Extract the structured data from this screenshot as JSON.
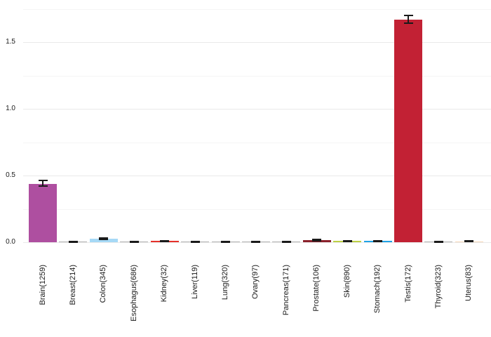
{
  "chart_data": {
    "type": "bar",
    "title": "",
    "xlabel": "",
    "ylabel": "",
    "legend": "none",
    "grid": true,
    "ylim": [
      0,
      1.8
    ],
    "yticks": [
      0.0,
      0.5,
      1.0,
      1.5
    ],
    "ytick_labels": [
      "0.0",
      "0.5",
      "1.0",
      "1.5"
    ],
    "minor_ticks": [
      0.25,
      0.75,
      1.25,
      1.75
    ],
    "categories": [
      "Brain(1259)",
      "Breast(214)",
      "Colon(345)",
      "Esophagus(686)",
      "Kidney(32)",
      "Liver(119)",
      "Lung(320)",
      "Ovary(97)",
      "Pancreas(171)",
      "Prostate(106)",
      "Skin(890)",
      "Stomach(192)",
      "Testis(172)",
      "Thyroid(323)",
      "Uterus(83)"
    ],
    "values": [
      0.437,
      0.003,
      0.026,
      0.004,
      0.01,
      0.003,
      0.003,
      0.003,
      0.003,
      0.016,
      0.008,
      0.008,
      1.668,
      0.003,
      0.006
    ],
    "error_low": [
      0.42,
      0.001,
      0.021,
      0.002,
      0.006,
      0.001,
      0.001,
      0.001,
      0.001,
      0.01,
      0.005,
      0.004,
      1.642,
      0.001,
      0.003
    ],
    "error_high": [
      0.465,
      0.006,
      0.031,
      0.007,
      0.013,
      0.006,
      0.006,
      0.005,
      0.006,
      0.02,
      0.011,
      0.011,
      1.7,
      0.006,
      0.009
    ],
    "bar_colors": [
      "#ae4fa0",
      "#b0b0b0",
      "#a6d9f6",
      "#b0b0b0",
      "#e5312b",
      "#b0b0b0",
      "#b0b0b0",
      "#b0b0b0",
      "#b0b0b0",
      "#8b212c",
      "#bdd046",
      "#20a3e6",
      "#c22134",
      "#b0b0b0",
      "#f6d8b8"
    ],
    "error_bar_color": "#1a1a1a"
  },
  "colors": {
    "background": "#ffffff",
    "grid_major": "#e9e9e9",
    "grid_minor": "#f5f5f5",
    "text": "#1a1a1a"
  }
}
